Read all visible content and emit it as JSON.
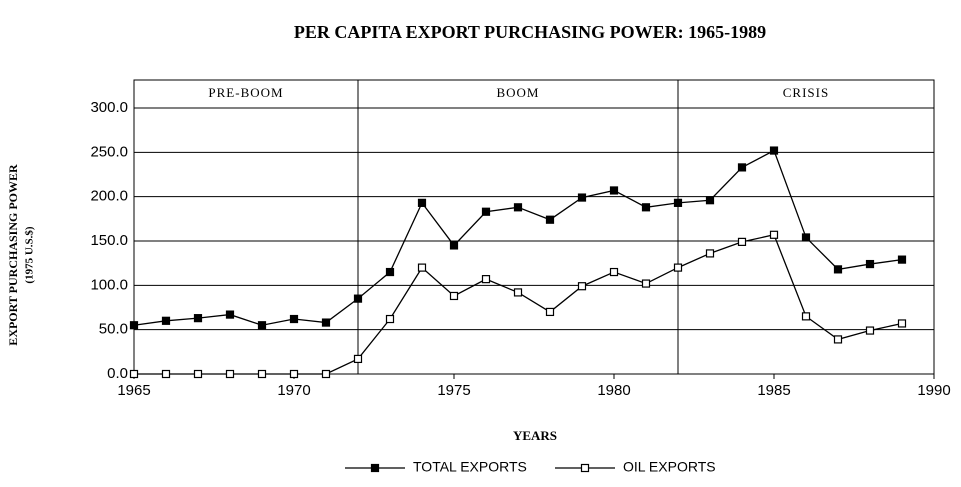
{
  "chart_data": {
    "type": "line",
    "title": "PER CAPITA EXPORT PURCHASING POWER:  1965-1989",
    "xlabel": "YEARS",
    "ylabel": "EXPORT PURCHASING POWER",
    "ylabel_sub": "(1975 U.S.$)",
    "x": [
      1965,
      1966,
      1967,
      1968,
      1969,
      1970,
      1971,
      1972,
      1973,
      1974,
      1975,
      1976,
      1977,
      1978,
      1979,
      1980,
      1981,
      1982,
      1983,
      1984,
      1985,
      1986,
      1987,
      1988,
      1989
    ],
    "series": [
      {
        "name": "TOTAL EXPORTS",
        "color": "#000000",
        "marker": "filled-square",
        "values": [
          55,
          60,
          63,
          67,
          55,
          62,
          58,
          85,
          115,
          193,
          145,
          183,
          188,
          174,
          199,
          207,
          188,
          193,
          196,
          233,
          252,
          154,
          118,
          124,
          129
        ]
      },
      {
        "name": "OIL EXPORTS",
        "color": "#000000",
        "marker": "open-square",
        "values": [
          0,
          0,
          0,
          0,
          0,
          0,
          0,
          17,
          62,
          120,
          88,
          107,
          92,
          70,
          99,
          115,
          102,
          120,
          136,
          149,
          157,
          65,
          39,
          49,
          57
        ]
      }
    ],
    "periods": [
      {
        "label": "PRE-BOOM",
        "start": 1965,
        "end": 1972
      },
      {
        "label": "BOOM",
        "start": 1972,
        "end": 1982
      },
      {
        "label": "CRISIS",
        "start": 1982,
        "end": 1990
      }
    ],
    "xlim": [
      1965,
      1990
    ],
    "xticks": [
      1965,
      1970,
      1975,
      1980,
      1985,
      1990
    ],
    "ylim": [
      0,
      300
    ],
    "yticks": [
      {
        "value": 0,
        "label": "0.0"
      },
      {
        "value": 50,
        "label": "50.0"
      },
      {
        "value": 100,
        "label": "100.0"
      },
      {
        "value": 150,
        "label": "150.0"
      },
      {
        "value": 200,
        "label": "200.0"
      },
      {
        "value": 250,
        "label": "250.0"
      },
      {
        "value": 300,
        "label": "300.0"
      }
    ],
    "grid": true,
    "legend": "bottom"
  }
}
